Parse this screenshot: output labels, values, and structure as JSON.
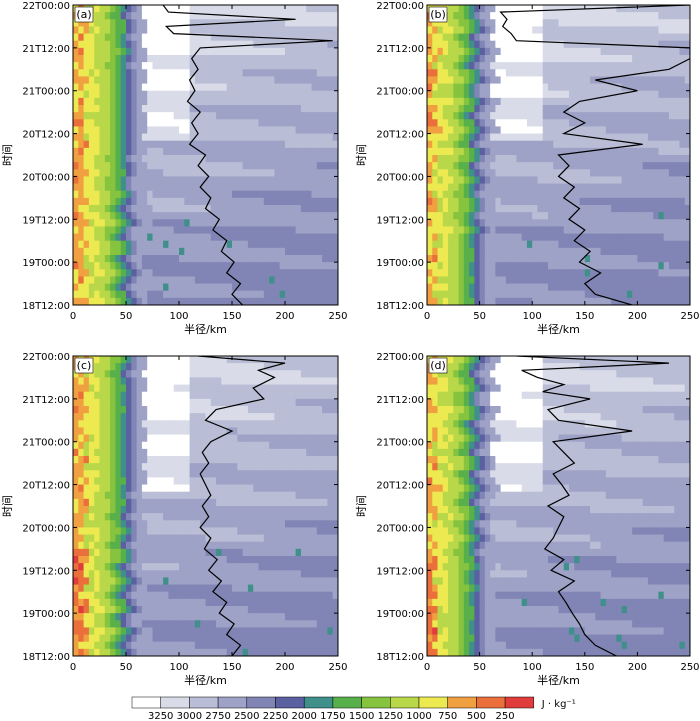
{
  "figure": {
    "colorbar_ticks": [
      "3250",
      "3000",
      "2750",
      "2500",
      "2250",
      "2000",
      "1750",
      "1500",
      "1250",
      "1000",
      "750",
      "500",
      "250"
    ],
    "colorbar_unit": "J · kg⁻¹",
    "colors": [
      "#ffffff",
      "#d9dce8",
      "#b9bdd5",
      "#9ea2c6",
      "#8185b5",
      "#5a60a0",
      "#3f8f8a",
      "#58b04a",
      "#86c440",
      "#b8d84a",
      "#ecea50",
      "#f0a040",
      "#ea6f3a",
      "#e03c3c"
    ]
  },
  "chart_data": [
    {
      "type": "heatmap",
      "panel": "(a)",
      "xlabel": "半径/km",
      "ylabel": "时间",
      "xticks": [
        "0",
        "50",
        "100",
        "150",
        "200",
        "250"
      ],
      "yticks": [
        "18T12:00",
        "19T00:00",
        "19T12:00",
        "20T00:00",
        "20T12:00",
        "21T00:00",
        "21T12:00",
        "22T00:00"
      ],
      "xlim": [
        0,
        250
      ],
      "ylim_hours": [
        0,
        84
      ],
      "line": {
        "hours": [
          0,
          3,
          6,
          9,
          12,
          15,
          18,
          21,
          24,
          27,
          30,
          33,
          36,
          39,
          42,
          45,
          48,
          51,
          54,
          57,
          60,
          63,
          66,
          69,
          72,
          74,
          76,
          78,
          80,
          82,
          84
        ],
        "radius": [
          160,
          150,
          158,
          145,
          152,
          140,
          145,
          132,
          138,
          125,
          130,
          120,
          128,
          118,
          125,
          110,
          118,
          112,
          120,
          108,
          115,
          110,
          118,
          112,
          120,
          245,
          95,
          88,
          210,
          90,
          85
        ]
      }
    },
    {
      "type": "heatmap",
      "panel": "(b)",
      "xlabel": "半径/km",
      "ylabel": "时间",
      "xticks": [
        "0",
        "50",
        "100",
        "150",
        "200",
        "250"
      ],
      "yticks": [
        "18T12:00",
        "19T00:00",
        "19T12:00",
        "20T00:00",
        "20T12:00",
        "21T00:00",
        "21T12:00",
        "22T00:00"
      ],
      "xlim": [
        0,
        250
      ],
      "ylim_hours": [
        0,
        84
      ],
      "line": {
        "hours": [
          0,
          3,
          6,
          9,
          12,
          15,
          18,
          21,
          24,
          27,
          30,
          33,
          36,
          39,
          42,
          45,
          48,
          51,
          54,
          57,
          60,
          63,
          66,
          69,
          72,
          74,
          76,
          78,
          80,
          82,
          84
        ],
        "radius": [
          195,
          160,
          150,
          165,
          145,
          155,
          140,
          150,
          135,
          145,
          130,
          140,
          125,
          135,
          125,
          205,
          130,
          150,
          130,
          145,
          200,
          160,
          230,
          250,
          250,
          85,
          80,
          72,
          76,
          70,
          250
        ]
      }
    },
    {
      "type": "heatmap",
      "panel": "(c)",
      "xlabel": "半径/km",
      "ylabel": "时间",
      "xticks": [
        "0",
        "50",
        "100",
        "150",
        "200",
        "250"
      ],
      "yticks": [
        "18T12:00",
        "19T00:00",
        "19T12:00",
        "20T00:00",
        "20T12:00",
        "21T00:00",
        "21T12:00",
        "22T00:00"
      ],
      "xlim": [
        0,
        250
      ],
      "ylim_hours": [
        0,
        84
      ],
      "line": {
        "hours": [
          0,
          3,
          6,
          9,
          12,
          15,
          18,
          21,
          24,
          27,
          30,
          33,
          36,
          39,
          42,
          45,
          48,
          51,
          54,
          57,
          60,
          63,
          66,
          69,
          72,
          75,
          78,
          80,
          82,
          84
        ],
        "radius": [
          150,
          158,
          145,
          152,
          138,
          145,
          132,
          140,
          128,
          136,
          124,
          130,
          120,
          128,
          122,
          130,
          125,
          120,
          128,
          122,
          130,
          150,
          125,
          135,
          180,
          170,
          190,
          175,
          200,
          118
        ]
      }
    },
    {
      "type": "heatmap",
      "panel": "(d)",
      "xlabel": "半径/km",
      "ylabel": "时间",
      "xticks": [
        "0",
        "50",
        "100",
        "150",
        "200",
        "250"
      ],
      "yticks": [
        "18T12:00",
        "19T00:00",
        "19T12:00",
        "20T00:00",
        "20T12:00",
        "21T00:00",
        "21T12:00",
        "22T00:00"
      ],
      "xlim": [
        0,
        250
      ],
      "ylim_hours": [
        0,
        84
      ],
      "line": {
        "hours": [
          0,
          3,
          6,
          9,
          12,
          15,
          18,
          21,
          24,
          27,
          30,
          33,
          36,
          39,
          42,
          45,
          48,
          51,
          54,
          57,
          60,
          63,
          66,
          69,
          72,
          74,
          76,
          78,
          80,
          82,
          84
        ],
        "radius": [
          180,
          160,
          150,
          145,
          138,
          132,
          125,
          140,
          118,
          130,
          112,
          120,
          125,
          130,
          115,
          135,
          128,
          120,
          140,
          130,
          120,
          195,
          125,
          115,
          155,
          110,
          130,
          105,
          90,
          230,
          85
        ]
      }
    }
  ]
}
